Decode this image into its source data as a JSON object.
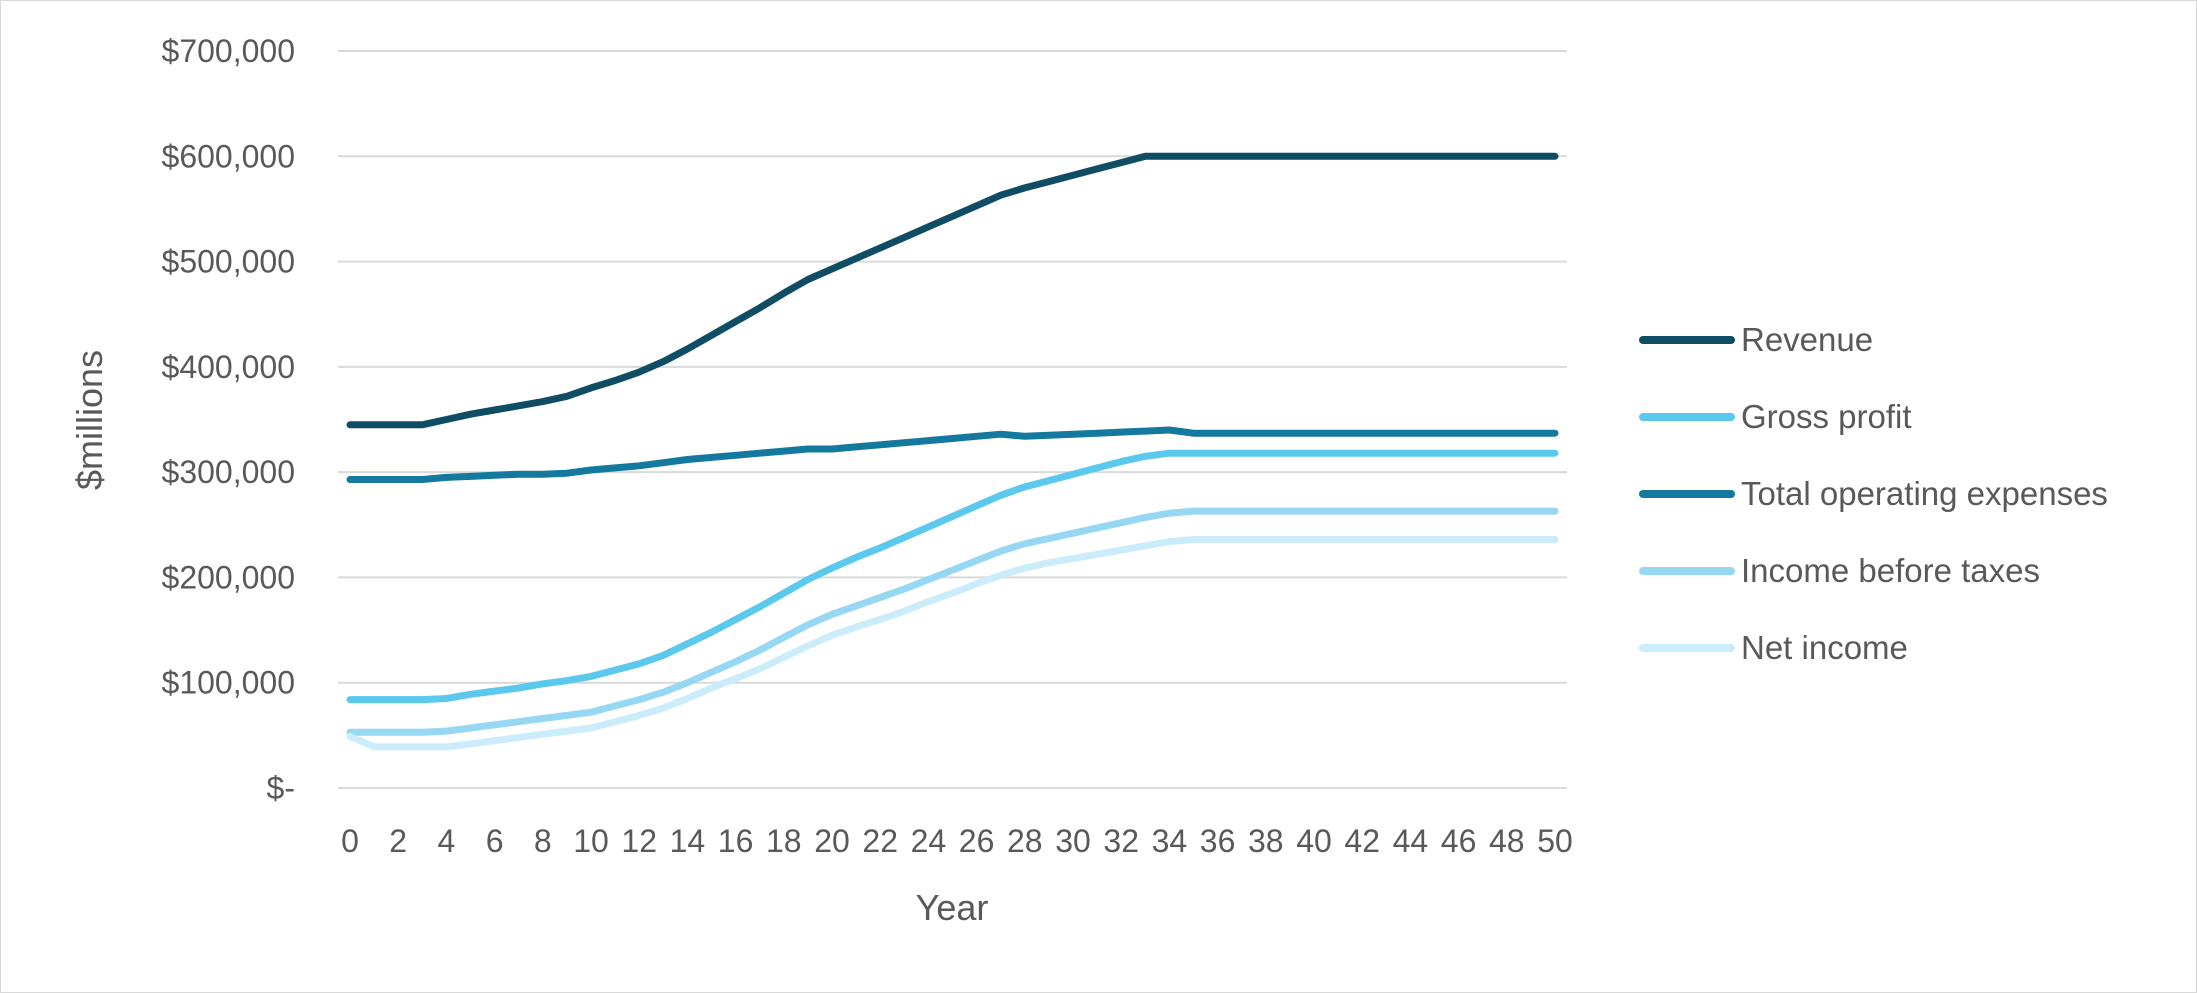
{
  "chart_data": {
    "type": "line",
    "title": "",
    "xlabel": "Year",
    "ylabel": "$millions",
    "x": [
      0,
      1,
      2,
      3,
      4,
      5,
      6,
      7,
      8,
      9,
      10,
      11,
      12,
      13,
      14,
      15,
      16,
      17,
      18,
      19,
      20,
      21,
      22,
      23,
      24,
      25,
      26,
      27,
      28,
      29,
      30,
      31,
      32,
      33,
      34,
      35,
      36,
      37,
      38,
      39,
      40,
      41,
      42,
      43,
      44,
      45,
      46,
      47,
      48,
      49,
      50
    ],
    "x_tick_labels": [
      "0",
      "2",
      "4",
      "6",
      "8",
      "10",
      "12",
      "14",
      "16",
      "18",
      "20",
      "22",
      "24",
      "26",
      "28",
      "30",
      "32",
      "34",
      "36",
      "38",
      "40",
      "42",
      "44",
      "46",
      "48",
      "50"
    ],
    "xlim": [
      0,
      50
    ],
    "ylim": [
      0,
      700000
    ],
    "y_tick_values": [
      0,
      100000,
      200000,
      300000,
      400000,
      500000,
      600000,
      700000
    ],
    "y_tick_labels": [
      "$-",
      "$100,000",
      "$200,000",
      "$300,000",
      "$400,000",
      "$500,000",
      "$600,000",
      "$700,000"
    ],
    "grid": true,
    "legend_position": "right",
    "series": [
      {
        "name": "Revenue",
        "color": "#0e4d64",
        "values": [
          345000,
          345000,
          345000,
          345000,
          350000,
          355000,
          359000,
          363000,
          367000,
          372000,
          380000,
          387000,
          395000,
          405000,
          417000,
          430000,
          443000,
          456000,
          470000,
          483000,
          493000,
          503000,
          513000,
          523000,
          533000,
          543000,
          553000,
          563000,
          570000,
          576000,
          582000,
          588000,
          594000,
          600000,
          600000,
          600000,
          600000,
          600000,
          600000,
          600000,
          600000,
          600000,
          600000,
          600000,
          600000,
          600000,
          600000,
          600000,
          600000,
          600000,
          600000
        ]
      },
      {
        "name": "Gross profit",
        "color": "#5bc8ee",
        "values": [
          84000,
          84000,
          84000,
          84000,
          85000,
          89000,
          92000,
          95000,
          99000,
          102000,
          106000,
          112000,
          118000,
          126000,
          137000,
          148000,
          160000,
          172000,
          185000,
          198000,
          209000,
          219000,
          228000,
          238000,
          248000,
          258000,
          268000,
          278000,
          286000,
          292000,
          298000,
          304000,
          310000,
          315000,
          318000,
          318000,
          318000,
          318000,
          318000,
          318000,
          318000,
          318000,
          318000,
          318000,
          318000,
          318000,
          318000,
          318000,
          318000,
          318000,
          318000
        ]
      },
      {
        "name": "Total operating expenses",
        "color": "#13799e",
        "values": [
          293000,
          293000,
          293000,
          293000,
          295000,
          296000,
          297000,
          298000,
          298000,
          299000,
          302000,
          304000,
          306000,
          309000,
          312000,
          314000,
          316000,
          318000,
          320000,
          322000,
          322000,
          324000,
          326000,
          328000,
          330000,
          332000,
          334000,
          336000,
          334000,
          335000,
          336000,
          337000,
          338000,
          339000,
          340000,
          337000,
          337000,
          337000,
          337000,
          337000,
          337000,
          337000,
          337000,
          337000,
          337000,
          337000,
          337000,
          337000,
          337000,
          337000,
          337000
        ]
      },
      {
        "name": "Income before taxes",
        "color": "#96d8f3",
        "values": [
          53000,
          53000,
          53000,
          53000,
          54000,
          57000,
          60000,
          63000,
          66000,
          69000,
          72000,
          78000,
          84000,
          91000,
          100000,
          110000,
          120000,
          131000,
          143000,
          155000,
          165000,
          173000,
          181000,
          189000,
          198000,
          207000,
          216000,
          225000,
          232000,
          237000,
          242000,
          247000,
          252000,
          257000,
          261000,
          263000,
          263000,
          263000,
          263000,
          263000,
          263000,
          263000,
          263000,
          263000,
          263000,
          263000,
          263000,
          263000,
          263000,
          263000,
          263000
        ]
      },
      {
        "name": "Net income",
        "color": "#cbecfa",
        "values": [
          49000,
          39000,
          39000,
          39000,
          39000,
          42000,
          45000,
          48000,
          51000,
          54000,
          57000,
          63000,
          69000,
          76000,
          85000,
          95000,
          104000,
          113000,
          124000,
          135000,
          145000,
          153000,
          160000,
          168000,
          177000,
          185000,
          194000,
          202000,
          209000,
          214000,
          218000,
          222000,
          226000,
          230000,
          234000,
          236000,
          236000,
          236000,
          236000,
          236000,
          236000,
          236000,
          236000,
          236000,
          236000,
          236000,
          236000,
          236000,
          236000,
          236000,
          236000
        ]
      }
    ]
  }
}
